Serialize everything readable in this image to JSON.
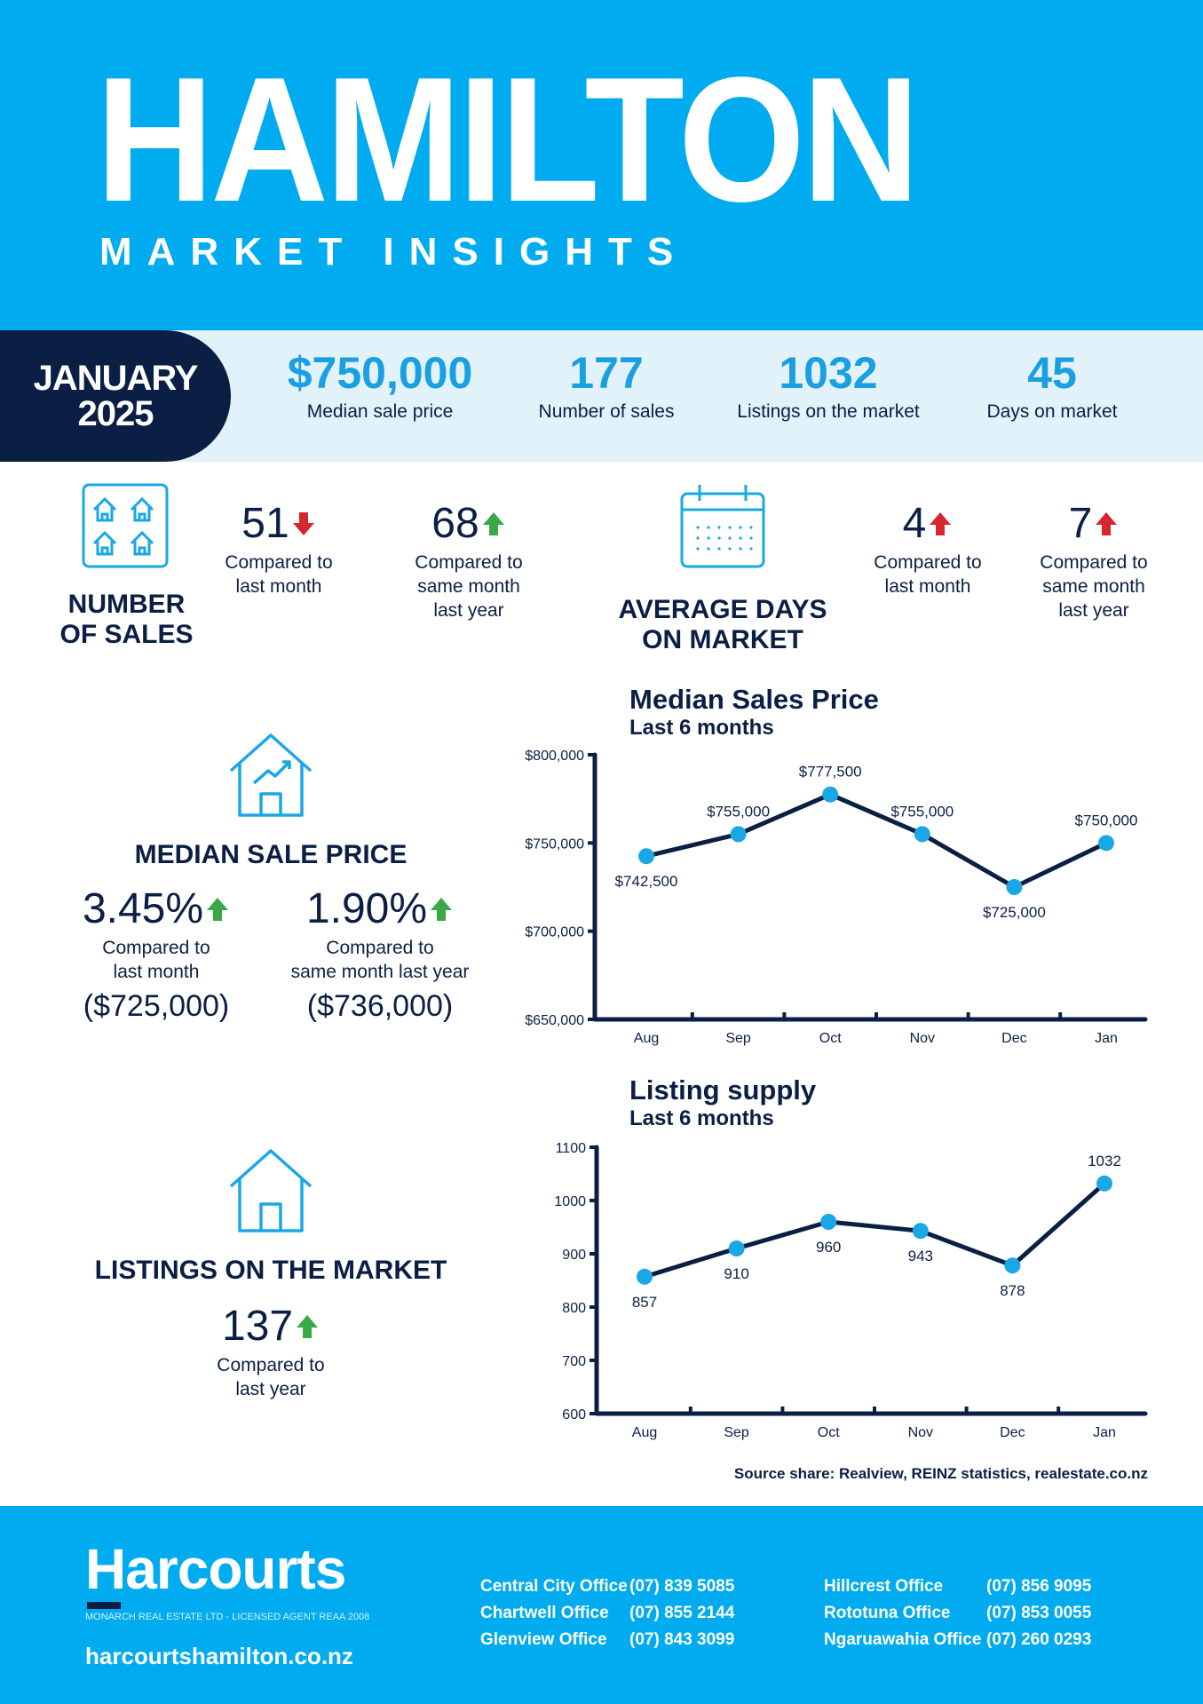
{
  "header": {
    "title": "HAMILTON",
    "subtitle": "MARKET INSIGHTS"
  },
  "period": {
    "month": "JANUARY",
    "year": "2025"
  },
  "kpis": [
    {
      "value": "$750,000",
      "label": "Median sale price"
    },
    {
      "value": "177",
      "label": "Number of sales"
    },
    {
      "value": "1032",
      "label": "Listings on the market"
    },
    {
      "value": "45",
      "label": "Days on market"
    }
  ],
  "number_of_sales": {
    "title_line1": "NUMBER",
    "title_line2": "OF SALES",
    "icon": "houses-grid-icon",
    "stats": [
      {
        "value": "51",
        "direction": "down",
        "cap1": "Compared to",
        "cap2": "last month",
        "cap3": ""
      },
      {
        "value": "68",
        "direction": "up",
        "cap1": "Compared to",
        "cap2": "same month",
        "cap3": "last year"
      }
    ]
  },
  "average_days": {
    "title_line1": "AVERAGE DAYS",
    "title_line2": "ON MARKET",
    "icon": "calendar-icon",
    "stats": [
      {
        "value": "4",
        "direction": "up",
        "cap1": "Compared to",
        "cap2": "last month",
        "cap3": ""
      },
      {
        "value": "7",
        "direction": "up",
        "cap1": "Compared to",
        "cap2": "same month",
        "cap3": "last year"
      }
    ]
  },
  "median_sale_price": {
    "title": "MEDIAN SALE PRICE",
    "icon": "house-trend-icon",
    "stats": [
      {
        "value": "3.45%",
        "direction": "up",
        "cap1": "Compared to",
        "cap2": "last month",
        "paren": "($725,000)"
      },
      {
        "value": "1.90%",
        "direction": "up",
        "cap1": "Compared to",
        "cap2": "same month last year",
        "paren": "($736,000)"
      }
    ]
  },
  "listings": {
    "title": "LISTINGS ON THE MARKET",
    "icon": "house-icon",
    "value": "137",
    "direction": "up",
    "cap1": "Compared to",
    "cap2": "last year"
  },
  "colors": {
    "brand_blue": "#00acef",
    "navy": "#0b1f44",
    "up_green": "#3aa847",
    "down_red": "#d6262e",
    "point_blue": "#1aa7e6",
    "light_band": "#e2f2fb"
  },
  "chart_data": [
    {
      "type": "line",
      "title": "Median Sales Price",
      "subtitle": "Last 6 months",
      "categories": [
        "Aug",
        "Sep",
        "Oct",
        "Nov",
        "Dec",
        "Jan"
      ],
      "values": [
        742500,
        755000,
        777500,
        755000,
        725000,
        750000
      ],
      "labels": [
        "$742,500",
        "$755,000",
        "$777,500",
        "$755,000",
        "$725,000",
        "$750,000"
      ],
      "label_position": [
        "below",
        "above",
        "above",
        "above",
        "below",
        "above"
      ],
      "yticks": [
        "$800,000",
        "$750,000",
        "$700,000",
        "$650,000"
      ],
      "ytick_values": [
        800000,
        750000,
        700000,
        650000
      ],
      "ylim": [
        650000,
        800000
      ],
      "grid": false
    },
    {
      "type": "line",
      "title": "Listing supply",
      "subtitle": "Last 6 months",
      "categories": [
        "Aug",
        "Sep",
        "Oct",
        "Nov",
        "Dec",
        "Jan"
      ],
      "values": [
        857,
        910,
        960,
        943,
        878,
        1032
      ],
      "labels": [
        "857",
        "910",
        "960",
        "943",
        "878",
        "1032"
      ],
      "label_position": [
        "below",
        "below",
        "below",
        "below",
        "below",
        "above"
      ],
      "yticks": [
        "1100",
        "1000",
        "900",
        "800",
        "700",
        "600"
      ],
      "ytick_values": [
        1100,
        1000,
        900,
        800,
        700,
        600
      ],
      "ylim": [
        600,
        1100
      ],
      "grid": false
    }
  ],
  "source": "Source share: Realview, REINZ statistics, realestate.co.nz",
  "footer": {
    "logo": "Harcourts",
    "license": "MONARCH REAL ESTATE LTD - LICENSED AGENT REAA 2008",
    "website": "harcourtshamilton.co.nz",
    "offices_left": [
      {
        "name": "Central City Office",
        "phone": "(07) 839 5085"
      },
      {
        "name": "Chartwell Office",
        "phone": "(07) 855 2144"
      },
      {
        "name": "Glenview Office",
        "phone": "(07) 843 3099"
      }
    ],
    "offices_right": [
      {
        "name": "Hillcrest Office",
        "phone": "(07) 856 9095"
      },
      {
        "name": "Rototuna Office",
        "phone": "(07) 853 0055"
      },
      {
        "name": "Ngaruawahia Office",
        "phone": "(07) 260 0293"
      }
    ]
  }
}
